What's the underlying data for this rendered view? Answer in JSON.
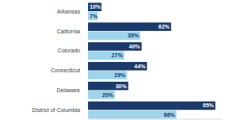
{
  "chart_data": {
    "type": "bar",
    "orientation": "horizontal",
    "categories": [
      "Arkansas",
      "California",
      "Colorado",
      "Connecticut",
      "Delaware",
      "District of Columbia"
    ],
    "series": [
      {
        "color": "#1b3a6b",
        "values": [
          10,
          62,
          40,
          44,
          30,
          95
        ],
        "value_labels": [
          "10%",
          "62%",
          "40%",
          "44%",
          "30%",
          "95%"
        ]
      },
      {
        "color": "#9fd5ea",
        "values": [
          7,
          39,
          27,
          29,
          20,
          66
        ],
        "value_labels": [
          "7%",
          "39%",
          "27%",
          "29%",
          "20%",
          "66%"
        ]
      }
    ],
    "xlim": [
      0,
      100
    ],
    "grid": false,
    "data_labels": true,
    "tick_labels": "y"
  }
}
